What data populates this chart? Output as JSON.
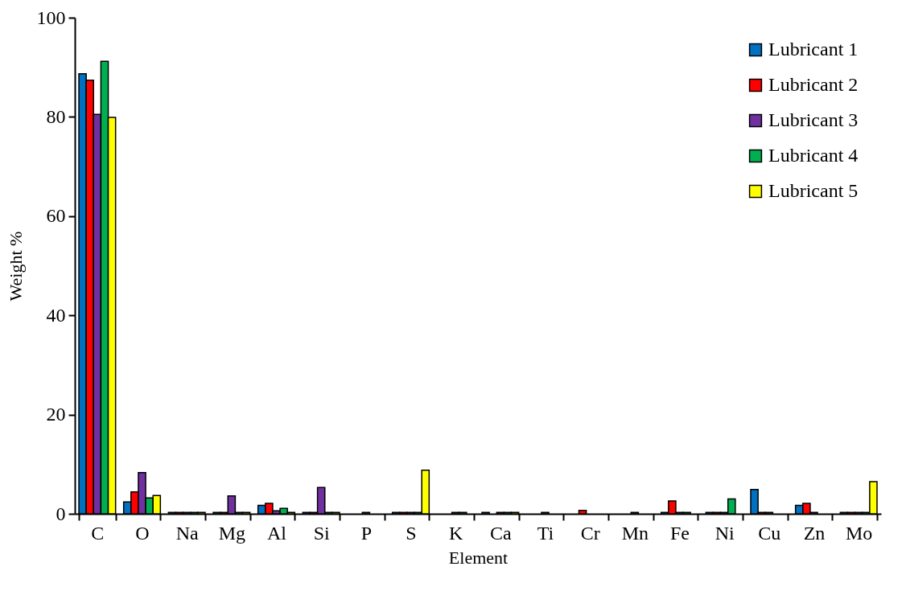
{
  "chart_data": {
    "type": "bar",
    "xlabel": "Element",
    "ylabel": "Weight  %",
    "categories": [
      "C",
      "O",
      "Na",
      "Mg",
      "Al",
      "Si",
      "P",
      "S",
      "K",
      "Ca",
      "Ti",
      "Cr",
      "Mn",
      "Fe",
      "Ni",
      "Cu",
      "Zn",
      "Mo"
    ],
    "series": [
      {
        "name": "Lubricant 1",
        "color": "#0070c0",
        "values": [
          88.7,
          2.4,
          0.3,
          0.3,
          1.7,
          0.3,
          null,
          0.3,
          null,
          0.3,
          null,
          null,
          null,
          0.3,
          0.3,
          4.9,
          1.7,
          0.3
        ]
      },
      {
        "name": "Lubricant 2",
        "color": "#ff0000",
        "values": [
          87.4,
          4.4,
          0.3,
          0.3,
          2.1,
          0.3,
          null,
          0.3,
          null,
          null,
          null,
          0.7,
          null,
          2.6,
          0.3,
          0.3,
          2.1,
          0.3
        ]
      },
      {
        "name": "Lubricant 3",
        "color": "#7030a0",
        "values": [
          80.5,
          8.3,
          0.3,
          3.6,
          0.6,
          5.3,
          0.3,
          0.3,
          0.3,
          0.3,
          0.3,
          null,
          0.3,
          0.3,
          0.3,
          0.3,
          0.3,
          0.3
        ]
      },
      {
        "name": "Lubricant 4",
        "color": "#00b050",
        "values": [
          91.2,
          3.2,
          0.3,
          0.3,
          1.1,
          0.3,
          null,
          0.3,
          0.3,
          0.3,
          null,
          null,
          null,
          0.3,
          3.0,
          null,
          null,
          0.3
        ]
      },
      {
        "name": "Lubricant 5",
        "color": "#ffff00",
        "values": [
          79.9,
          3.7,
          0.3,
          0.3,
          0.3,
          0.3,
          null,
          8.8,
          null,
          0.3,
          null,
          null,
          null,
          null,
          null,
          null,
          null,
          6.5
        ]
      }
    ],
    "ylim": [
      0,
      100
    ],
    "yticks": [
      0,
      20,
      40,
      60,
      80,
      100
    ],
    "grid": false,
    "legend": "top right"
  }
}
